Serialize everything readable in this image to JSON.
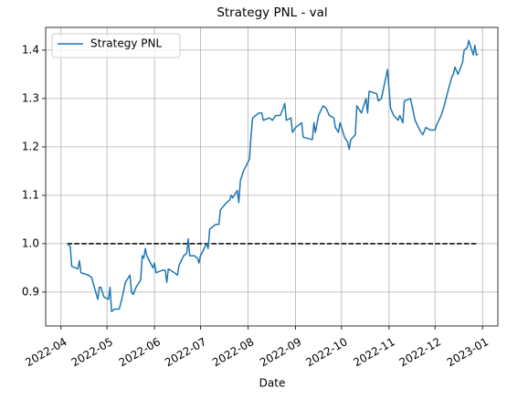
{
  "chart_data": {
    "type": "line",
    "title": "Strategy PNL - val",
    "xlabel": "Date",
    "x": [
      "2022-04-05",
      "2022-04-07",
      "2022-04-08",
      "2022-04-12",
      "2022-04-13",
      "2022-04-14",
      "2022-04-19",
      "2022-04-21",
      "2022-04-25",
      "2022-04-26",
      "2022-04-27",
      "2022-04-29",
      "2022-05-02",
      "2022-05-03",
      "2022-05-04",
      "2022-05-06",
      "2022-05-09",
      "2022-05-11",
      "2022-05-13",
      "2022-05-16",
      "2022-05-17",
      "2022-05-18",
      "2022-05-20",
      "2022-05-23",
      "2022-05-24",
      "2022-05-25",
      "2022-05-26",
      "2022-05-27",
      "2022-05-31",
      "2022-06-01",
      "2022-06-02",
      "2022-06-06",
      "2022-06-08",
      "2022-06-09",
      "2022-06-10",
      "2022-06-14",
      "2022-06-16",
      "2022-06-17",
      "2022-06-20",
      "2022-06-22",
      "2022-06-23",
      "2022-06-24",
      "2022-06-27",
      "2022-06-29",
      "2022-06-30",
      "2022-07-01",
      "2022-07-05",
      "2022-07-06",
      "2022-07-07",
      "2022-07-11",
      "2022-07-13",
      "2022-07-14",
      "2022-07-18",
      "2022-07-20",
      "2022-07-21",
      "2022-07-22",
      "2022-07-25",
      "2022-07-26",
      "2022-07-27",
      "2022-07-29",
      "2022-08-02",
      "2022-08-03",
      "2022-08-04",
      "2022-08-08",
      "2022-08-10",
      "2022-08-11",
      "2022-08-15",
      "2022-08-17",
      "2022-08-19",
      "2022-08-22",
      "2022-08-24",
      "2022-08-25",
      "2022-08-26",
      "2022-08-29",
      "2022-08-30",
      "2022-09-01",
      "2022-09-05",
      "2022-09-06",
      "2022-09-12",
      "2022-09-13",
      "2022-09-14",
      "2022-09-16",
      "2022-09-19",
      "2022-09-21",
      "2022-09-23",
      "2022-09-26",
      "2022-09-27",
      "2022-09-29",
      "2022-09-30",
      "2022-10-03",
      "2022-10-05",
      "2022-10-06",
      "2022-10-07",
      "2022-10-10",
      "2022-10-11",
      "2022-10-14",
      "2022-10-17",
      "2022-10-18",
      "2022-10-19",
      "2022-10-24",
      "2022-10-25",
      "2022-10-27",
      "2022-10-31",
      "2022-11-01",
      "2022-11-02",
      "2022-11-04",
      "2022-11-07",
      "2022-11-08",
      "2022-11-10",
      "2022-11-11",
      "2022-11-15",
      "2022-11-17",
      "2022-11-18",
      "2022-11-21",
      "2022-11-23",
      "2022-11-25",
      "2022-11-28",
      "2022-12-01",
      "2022-12-02",
      "2022-12-05",
      "2022-12-07",
      "2022-12-09",
      "2022-12-12",
      "2022-12-13",
      "2022-12-14",
      "2022-12-16",
      "2022-12-19",
      "2022-12-20",
      "2022-12-22",
      "2022-12-23",
      "2022-12-26",
      "2022-12-27",
      "2022-12-28",
      "2022-12-29"
    ],
    "series": [
      {
        "name": "Strategy PNL",
        "color": "#1f77b4",
        "values": [
          1.0,
          0.995,
          0.953,
          0.948,
          0.965,
          0.94,
          0.935,
          0.93,
          0.885,
          0.91,
          0.91,
          0.89,
          0.885,
          0.91,
          0.86,
          0.865,
          0.865,
          0.89,
          0.92,
          0.935,
          0.9,
          0.895,
          0.91,
          0.925,
          0.975,
          0.97,
          0.99,
          0.975,
          0.95,
          0.96,
          0.94,
          0.945,
          0.945,
          0.92,
          0.948,
          0.94,
          0.935,
          0.955,
          0.975,
          0.98,
          1.01,
          0.975,
          0.975,
          0.97,
          0.96,
          0.975,
          1.0,
          0.99,
          1.03,
          1.04,
          1.04,
          1.07,
          1.085,
          1.09,
          1.1,
          1.095,
          1.11,
          1.085,
          1.13,
          1.15,
          1.175,
          1.225,
          1.26,
          1.27,
          1.27,
          1.255,
          1.26,
          1.255,
          1.265,
          1.265,
          1.28,
          1.29,
          1.255,
          1.26,
          1.23,
          1.24,
          1.25,
          1.22,
          1.215,
          1.25,
          1.23,
          1.265,
          1.285,
          1.28,
          1.265,
          1.26,
          1.24,
          1.23,
          1.25,
          1.22,
          1.21,
          1.195,
          1.215,
          1.225,
          1.285,
          1.27,
          1.3,
          1.27,
          1.315,
          1.31,
          1.295,
          1.3,
          1.36,
          1.32,
          1.28,
          1.265,
          1.255,
          1.265,
          1.25,
          1.295,
          1.3,
          1.27,
          1.255,
          1.235,
          1.225,
          1.24,
          1.235,
          1.235,
          1.245,
          1.265,
          1.285,
          1.31,
          1.345,
          1.35,
          1.365,
          1.35,
          1.375,
          1.4,
          1.405,
          1.42,
          1.39,
          1.41,
          1.39,
          1.392
        ]
      }
    ],
    "reference_line": {
      "x": [
        "2022-04-05",
        "2022-12-29"
      ],
      "values": [
        1,
        1
      ],
      "color": "#000000",
      "dashed": true
    },
    "xlim": [
      "2022-03-22",
      "2023-01-11"
    ],
    "xticks": [
      {
        "value": "2022-04-01",
        "label": "2022-04"
      },
      {
        "value": "2022-05-01",
        "label": "2022-05"
      },
      {
        "value": "2022-06-01",
        "label": "2022-06"
      },
      {
        "value": "2022-07-01",
        "label": "2022-07"
      },
      {
        "value": "2022-08-01",
        "label": "2022-08"
      },
      {
        "value": "2022-09-01",
        "label": "2022-09"
      },
      {
        "value": "2022-10-01",
        "label": "2022-10"
      },
      {
        "value": "2022-11-01",
        "label": "2022-11"
      },
      {
        "value": "2022-12-01",
        "label": "2022-12"
      },
      {
        "value": "2023-01-01",
        "label": "2023-01"
      }
    ],
    "ylim": [
      0.83,
      1.447
    ],
    "yticks": [
      0.9,
      {
        "value": 1,
        "label": "1.0"
      },
      1.1,
      1.2,
      1.3,
      1.4
    ],
    "grid": true,
    "legend": "upper left"
  }
}
